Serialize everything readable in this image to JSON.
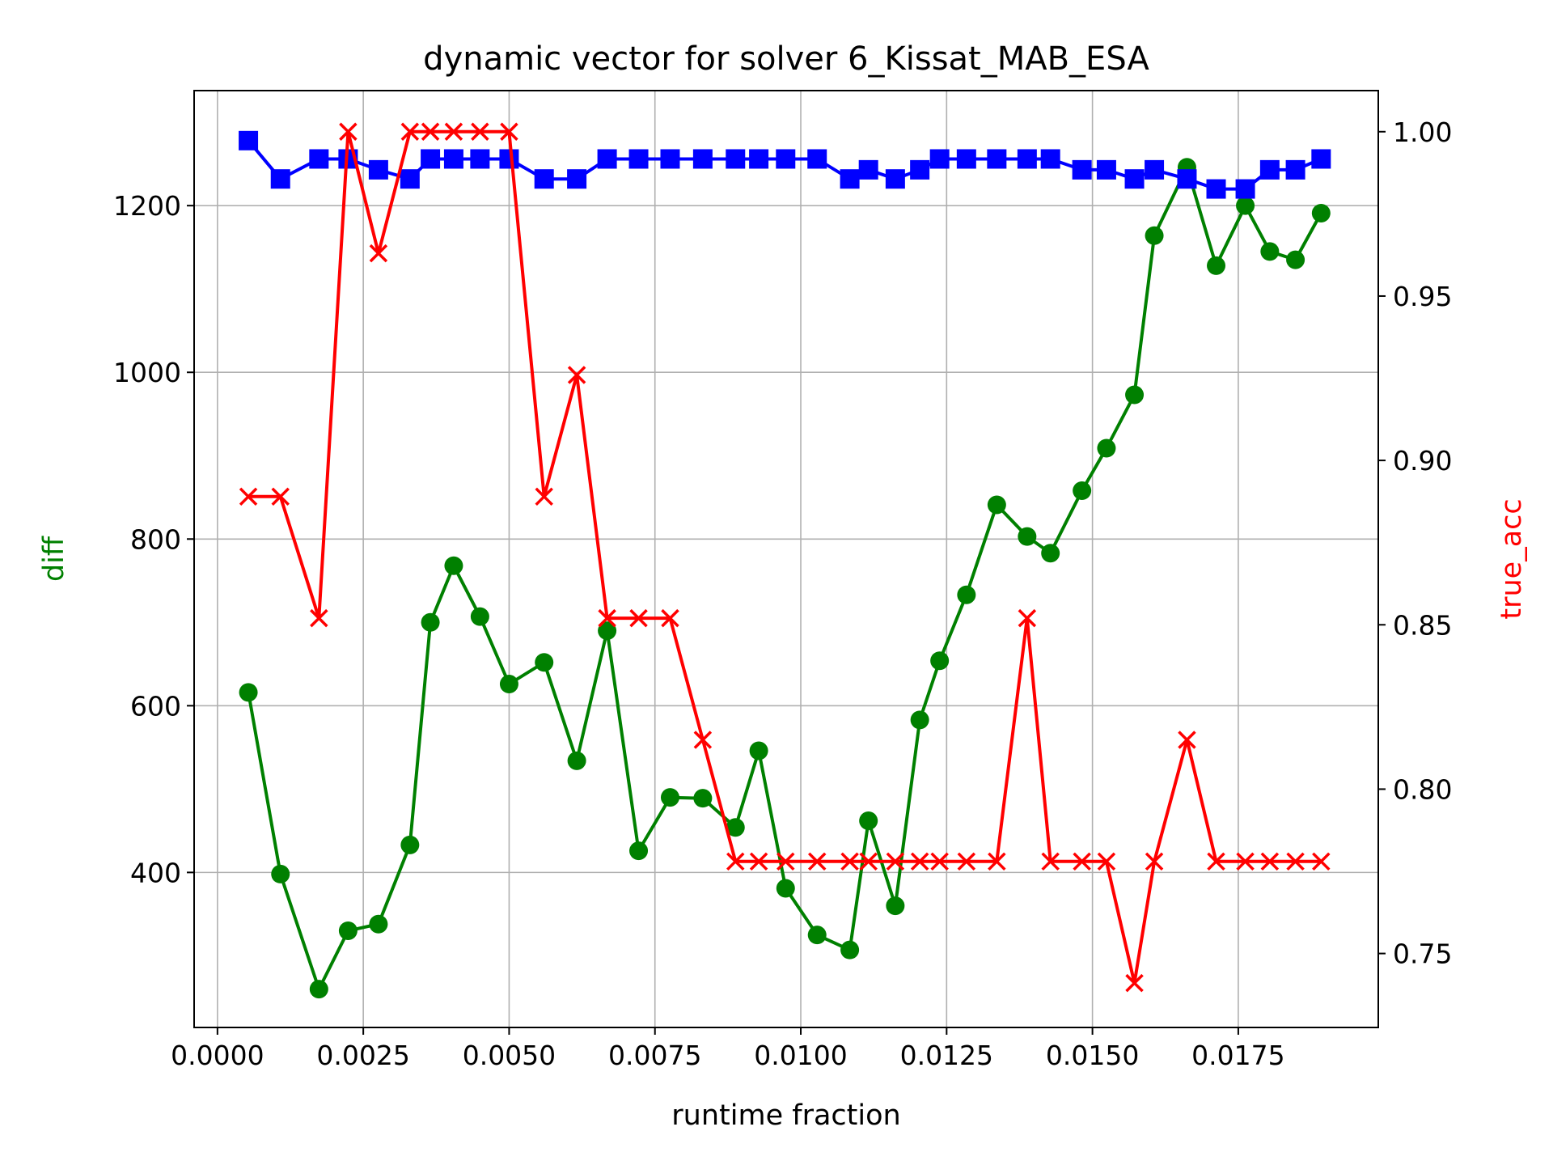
{
  "chart_data": {
    "type": "line",
    "title": "dynamic vector for solver 6_Kissat_MAB_ESA",
    "xlabel": "runtime fraction",
    "ylabel_left": "diff",
    "ylabel_right": "true_acc",
    "xlim": [
      -0.0004,
      0.0199
    ],
    "ylim_left": [
      214,
      1338
    ],
    "ylim_right": [
      0.7275,
      1.0125
    ],
    "x_ticks": [
      0.0,
      0.0025,
      0.005,
      0.0075,
      0.01,
      0.0125,
      0.015,
      0.0175
    ],
    "x_tick_labels": [
      "0.0000",
      "0.0025",
      "0.0050",
      "0.0075",
      "0.0100",
      "0.0125",
      "0.0150",
      "0.0175"
    ],
    "y_left_ticks": [
      400,
      600,
      800,
      1000,
      1200
    ],
    "y_left_tick_labels": [
      "400",
      "600",
      "800",
      "1000",
      "1200"
    ],
    "y_right_ticks": [
      0.75,
      0.8,
      0.85,
      0.9,
      0.95,
      1.0
    ],
    "y_right_tick_labels": [
      "0.75",
      "0.80",
      "0.85",
      "0.90",
      "0.95",
      "1.00"
    ],
    "grid": true,
    "x": [
      0.00053,
      0.00108,
      0.00174,
      0.00224,
      0.00276,
      0.0033,
      0.00365,
      0.00405,
      0.0045,
      0.005,
      0.0056,
      0.00616,
      0.00668,
      0.00722,
      0.00776,
      0.00832,
      0.00888,
      0.00928,
      0.00974,
      0.01028,
      0.01084,
      0.01116,
      0.01162,
      0.01204,
      0.01238,
      0.01284,
      0.01336,
      0.01388,
      0.01428,
      0.01482,
      0.01524,
      0.01572,
      0.01606,
      0.01662,
      0.01712,
      0.01762,
      0.01804,
      0.01848,
      0.01892
    ],
    "series": [
      {
        "axis": "left",
        "color": "#008000",
        "marker": "circle",
        "values": [
          616,
          398,
          260,
          330,
          338,
          433,
          700,
          768,
          707,
          626,
          652,
          534,
          690,
          426,
          490,
          489,
          454,
          546,
          381,
          325,
          307,
          462,
          360,
          583,
          654,
          733,
          841,
          803,
          783,
          858,
          909,
          973,
          1164,
          1246,
          1128,
          1200,
          1145,
          1135,
          1191
        ]
      },
      {
        "axis": "left",
        "color": "#0000ff",
        "marker": "square",
        "values": [
          1278,
          1232,
          1256,
          1256,
          1243,
          1232,
          1256,
          1256,
          1256,
          1256,
          1232,
          1232,
          1256,
          1256,
          1256,
          1256,
          1256,
          1256,
          1256,
          1256,
          1232,
          1243,
          1232,
          1243,
          1256,
          1256,
          1256,
          1256,
          1256,
          1243,
          1243,
          1232,
          1243,
          1232,
          1220,
          1220,
          1243,
          1243,
          1256
        ]
      },
      {
        "axis": "right",
        "color": "#ff0000",
        "marker": "x",
        "values": [
          0.889,
          0.889,
          0.852,
          1.0,
          0.963,
          1.0,
          1.0,
          1.0,
          1.0,
          1.0,
          0.889,
          0.926,
          0.852,
          0.852,
          0.852,
          0.815,
          0.778,
          0.778,
          0.778,
          0.778,
          0.778,
          0.778,
          0.778,
          0.778,
          0.778,
          0.778,
          0.778,
          0.852,
          0.778,
          0.778,
          0.778,
          0.741,
          0.778,
          0.815,
          0.778,
          0.778,
          0.778,
          0.778,
          0.778
        ]
      }
    ]
  }
}
